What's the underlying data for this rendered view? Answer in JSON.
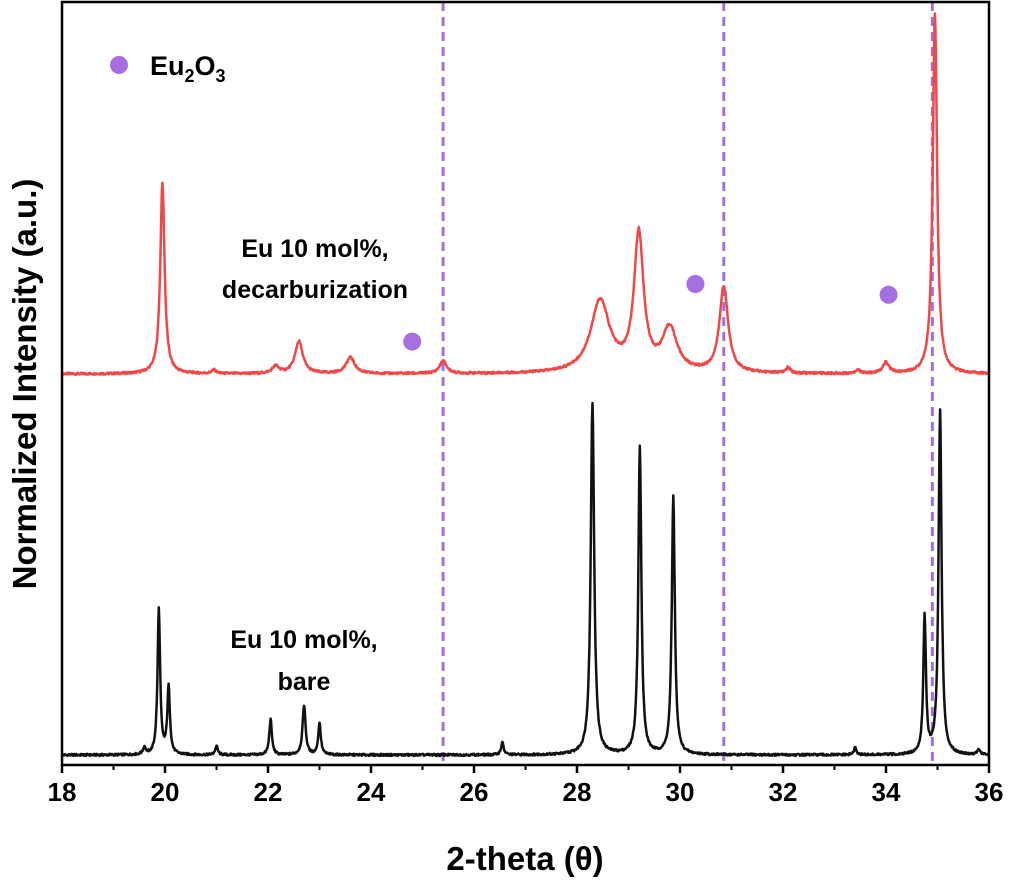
{
  "chart_data": {
    "type": "line",
    "xlabel": "2-theta (θ)",
    "ylabel": "Normalized Intensity (a.u.)",
    "xlim": [
      18,
      36
    ],
    "x_ticks": [
      18,
      20,
      22,
      24,
      26,
      28,
      30,
      32,
      34,
      36
    ],
    "y_ticks": "none",
    "grid": false,
    "legend": {
      "placement": "top-left",
      "label_main": "Eu",
      "label_sub1": "2",
      "label_mid": "O",
      "label_sub2": "3",
      "marker_color": "#a66ee0"
    },
    "reference_lines": {
      "x": [
        25.4,
        30.85,
        34.9
      ],
      "color": "#a66ee0",
      "style": "dashed"
    },
    "series": [
      {
        "label_lines": [
          "Eu 10 mol%,",
          "decarburization"
        ],
        "color": "#f04848",
        "baseline": 0.0,
        "peaks": [
          {
            "x": 19.95,
            "h": 0.53,
            "w": 0.05
          },
          {
            "x": 20.95,
            "h": 0.01,
            "w": 0.05
          },
          {
            "x": 22.15,
            "h": 0.02,
            "w": 0.08
          },
          {
            "x": 22.6,
            "h": 0.09,
            "w": 0.09
          },
          {
            "x": 23.6,
            "h": 0.045,
            "w": 0.1
          },
          {
            "x": 25.4,
            "h": 0.035,
            "w": 0.08
          },
          {
            "x": 28.45,
            "h": 0.2,
            "w": 0.22
          },
          {
            "x": 29.2,
            "h": 0.38,
            "w": 0.11
          },
          {
            "x": 29.8,
            "h": 0.12,
            "w": 0.17
          },
          {
            "x": 30.85,
            "h": 0.24,
            "w": 0.1
          },
          {
            "x": 32.1,
            "h": 0.015,
            "w": 0.05
          },
          {
            "x": 33.45,
            "h": 0.01,
            "w": 0.05
          },
          {
            "x": 34.0,
            "h": 0.03,
            "w": 0.07
          },
          {
            "x": 34.95,
            "h": 1.0,
            "w": 0.05
          }
        ]
      },
      {
        "label_lines": [
          "Eu 10 mol%,",
          "bare"
        ],
        "color": "#111111",
        "baseline": 0.0,
        "peaks": [
          {
            "x": 19.6,
            "h": 0.02,
            "w": 0.03
          },
          {
            "x": 19.88,
            "h": 0.41,
            "w": 0.03
          },
          {
            "x": 20.07,
            "h": 0.19,
            "w": 0.03
          },
          {
            "x": 21.0,
            "h": 0.025,
            "w": 0.03
          },
          {
            "x": 22.05,
            "h": 0.1,
            "w": 0.03
          },
          {
            "x": 22.7,
            "h": 0.14,
            "w": 0.035
          },
          {
            "x": 23.0,
            "h": 0.09,
            "w": 0.03
          },
          {
            "x": 26.55,
            "h": 0.035,
            "w": 0.03
          },
          {
            "x": 28.3,
            "h": 0.99,
            "w": 0.04
          },
          {
            "x": 29.22,
            "h": 0.87,
            "w": 0.035
          },
          {
            "x": 29.87,
            "h": 0.73,
            "w": 0.035
          },
          {
            "x": 33.4,
            "h": 0.02,
            "w": 0.03
          },
          {
            "x": 34.75,
            "h": 0.39,
            "w": 0.03
          },
          {
            "x": 35.05,
            "h": 0.97,
            "w": 0.035
          },
          {
            "x": 35.8,
            "h": 0.015,
            "w": 0.03
          }
        ]
      }
    ],
    "markers": [
      {
        "x": 24.8,
        "y": 0.09,
        "series": 0
      },
      {
        "x": 30.3,
        "y": 0.25,
        "series": 0
      },
      {
        "x": 34.05,
        "y": 0.22,
        "series": 0
      }
    ]
  }
}
